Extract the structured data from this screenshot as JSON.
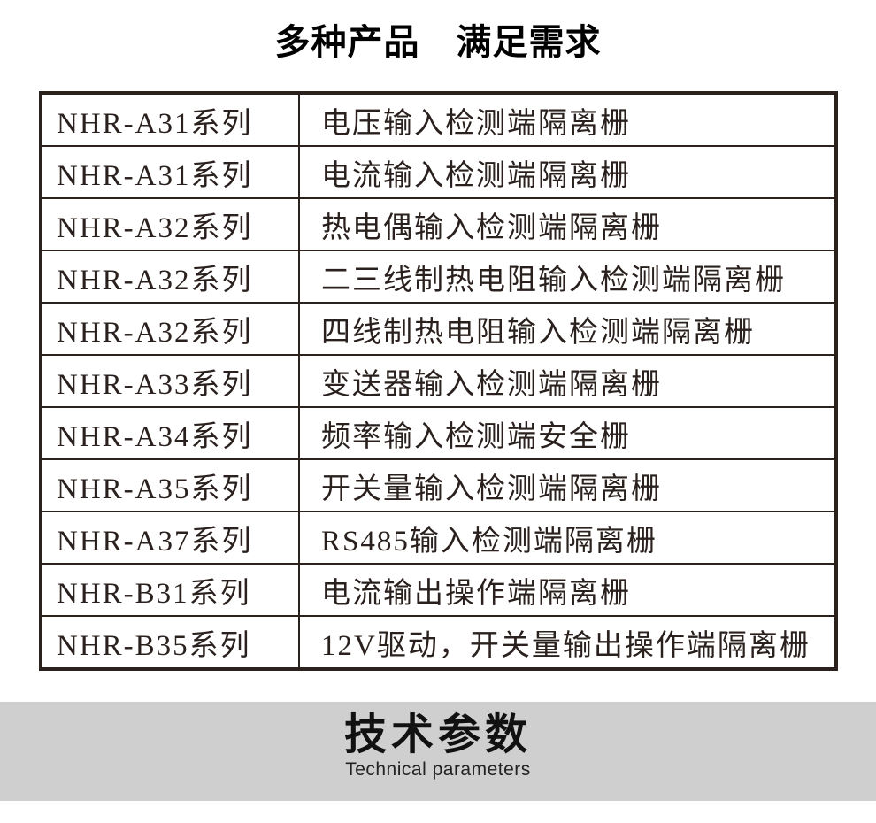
{
  "title": "多种产品　满足需求",
  "table": {
    "rows": [
      {
        "series": "NHR-A31系列",
        "description": "电压输入检测端隔离栅"
      },
      {
        "series": "NHR-A31系列",
        "description": "电流输入检测端隔离栅"
      },
      {
        "series": "NHR-A32系列",
        "description": "热电偶输入检测端隔离栅"
      },
      {
        "series": "NHR-A32系列",
        "description": "二三线制热电阻输入检测端隔离栅"
      },
      {
        "series": "NHR-A32系列",
        "description": "四线制热电阻输入检测端隔离栅"
      },
      {
        "series": "NHR-A33系列",
        "description": "变送器输入检测端隔离栅"
      },
      {
        "series": "NHR-A34系列",
        "description": "频率输入检测端安全栅"
      },
      {
        "series": "NHR-A35系列",
        "description": "开关量输入检测端隔离栅"
      },
      {
        "series": "NHR-A37系列",
        "description": "RS485输入检测端隔离栅"
      },
      {
        "series": "NHR-B31系列",
        "description": "电流输出操作端隔离栅"
      },
      {
        "series": "NHR-B35系列",
        "description": "12V驱动，开关量输出操作端隔离栅"
      }
    ]
  },
  "section": {
    "heading": "技术参数",
    "subheading": "Technical parameters"
  },
  "colors": {
    "text": "#2a211e",
    "border": "#2b211d",
    "band_background": "#d0cfd0",
    "title_text": "#000000"
  }
}
